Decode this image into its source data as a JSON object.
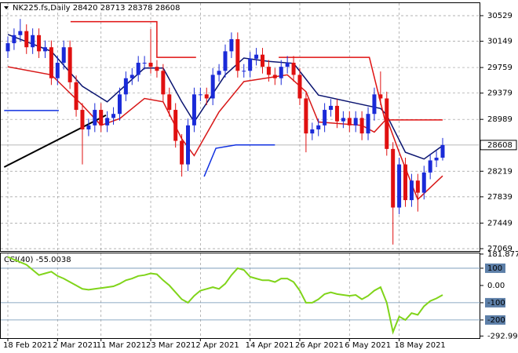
{
  "chart_data": {
    "type": "candlestick",
    "title": "NK225.fs,Daily",
    "categories": [
      "18 Feb 2021",
      null,
      null,
      null,
      null,
      null,
      null,
      null,
      "2 Mar 2021",
      null,
      null,
      null,
      null,
      null,
      null,
      "11 Mar 2021",
      null,
      null,
      null,
      null,
      null,
      null,
      null,
      "23 Mar 2021",
      null,
      null,
      null,
      null,
      null,
      null,
      null,
      "2 Apr 2021",
      null,
      null,
      null,
      null,
      null,
      null,
      null,
      "14 Apr 2021",
      null,
      null,
      null,
      null,
      null,
      null,
      null,
      "26 Apr 2021",
      null,
      null,
      null,
      null,
      null,
      null,
      null,
      "6 May 2021",
      null,
      null,
      null,
      null,
      null,
      null,
      null,
      "18 May 2021",
      null,
      null,
      null,
      null,
      null,
      null,
      null
    ],
    "open": [
      30000,
      30120,
      30240,
      30300,
      30060,
      30240,
      30000,
      30060,
      29600,
      29830,
      30060,
      29540,
      29130,
      28840,
      28900,
      29130,
      28900,
      29010,
      29070,
      29360,
      29600,
      29650,
      29830,
      29830,
      29770,
      29710,
      29360,
      29130,
      28670,
      28320,
      28900,
      29360,
      29360,
      29300,
      29650,
      29710,
      30000,
      30180,
      29710,
      29710,
      29890,
      29950,
      29770,
      29650,
      29600,
      29770,
      29830,
      29650,
      29300,
      28780,
      28840,
      28900,
      29130,
      29190,
      28960,
      29010,
      28900,
      29010,
      28780,
      29070,
      29360,
      29300,
      28550,
      27680,
      28320,
      27790,
      28080,
      27900,
      28200,
      28380,
      28420
    ],
    "high": [
      30220,
      30340,
      30480,
      30400,
      30340,
      30340,
      30160,
      30160,
      29930,
      30160,
      30160,
      29640,
      29230,
      29000,
      29230,
      29230,
      29110,
      29170,
      29460,
      29700,
      29750,
      29930,
      29930,
      30330,
      29870,
      29810,
      29460,
      29230,
      28770,
      29000,
      29460,
      29460,
      29460,
      29750,
      29810,
      30100,
      30280,
      30280,
      29810,
      29990,
      30050,
      30050,
      29870,
      29750,
      29870,
      29930,
      29930,
      29750,
      29400,
      28940,
      29000,
      29230,
      29290,
      29290,
      29110,
      29110,
      29110,
      29110,
      29170,
      29460,
      29700,
      29400,
      28650,
      28420,
      28420,
      28180,
      28180,
      28300,
      28480,
      28520,
      28713
    ],
    "low": [
      29900,
      30020,
      30140,
      29960,
      29960,
      29900,
      29900,
      29500,
      29500,
      29730,
      29440,
      29030,
      28320,
      28740,
      28800,
      28800,
      28800,
      28910,
      28970,
      29260,
      29500,
      29550,
      29730,
      29670,
      29610,
      29260,
      29030,
      28570,
      28140,
      28220,
      28800,
      29260,
      29200,
      29200,
      29550,
      29610,
      29900,
      29610,
      29610,
      29610,
      29790,
      29670,
      29550,
      29500,
      29500,
      29670,
      29550,
      29200,
      28500,
      28680,
      28740,
      28800,
      29030,
      28860,
      28860,
      28800,
      28800,
      28680,
      28680,
      28970,
      29200,
      28450,
      27130,
      27580,
      27690,
      27690,
      27620,
      27800,
      28100,
      28280,
      28378
    ],
    "close": [
      30120,
      30240,
      30300,
      30060,
      30240,
      30000,
      30060,
      29600,
      29830,
      30060,
      29540,
      29130,
      28840,
      28900,
      29130,
      28900,
      29010,
      29070,
      29360,
      29600,
      29650,
      29830,
      29830,
      29770,
      29710,
      29360,
      29130,
      28670,
      28320,
      28900,
      29360,
      29360,
      29300,
      29650,
      29710,
      30000,
      30180,
      29710,
      29710,
      29890,
      29950,
      29770,
      29650,
      29600,
      29770,
      29830,
      29650,
      29300,
      28780,
      28840,
      28900,
      29130,
      29190,
      28960,
      29010,
      28900,
      29010,
      28780,
      29070,
      29360,
      29300,
      28550,
      27680,
      28320,
      27790,
      28080,
      27900,
      28200,
      28380,
      28420,
      28608
    ],
    "up_color": "#1a2ad8",
    "down_color": "#e01010",
    "ylim": [
      27034,
      30715
    ],
    "yticks": [
      27069,
      27449,
      27839,
      28219,
      28989,
      29379,
      29759,
      30149,
      30529
    ],
    "grid": true,
    "overlays": [
      {
        "color": "#0a1470",
        "x": [
          0,
          7,
          12,
          16,
          22,
          25,
          28,
          30,
          35,
          38,
          42,
          46,
          50,
          55,
          60,
          61,
          64,
          67,
          70
        ],
        "values": [
          30250,
          30000,
          29480,
          29250,
          29750,
          29750,
          29250,
          28950,
          29650,
          29900,
          29850,
          29820,
          29350,
          29250,
          29150,
          29050,
          28500,
          28400,
          28600
        ]
      },
      {
        "color": "#d81818",
        "x": [
          0,
          7,
          12,
          15,
          18,
          22,
          25,
          28,
          30,
          34,
          38,
          45,
          48,
          50,
          57,
          59,
          61,
          63,
          66,
          70
        ],
        "values": [
          29770,
          29650,
          29200,
          28900,
          29000,
          29300,
          29250,
          28700,
          28450,
          29100,
          29550,
          29650,
          29400,
          28950,
          28900,
          28800,
          29000,
          28500,
          27800,
          28150
        ]
      },
      {
        "color": "#e01010",
        "x": [
          10.1,
          24,
          24,
          30.3,
          null,
          43.6,
          58.2,
          60.7,
          70
        ],
        "values": [
          30440,
          30440,
          29910,
          29910,
          null,
          29910,
          29910,
          28980,
          28980
        ]
      },
      {
        "color": "#1030e0",
        "x": [
          -0.6,
          8.2,
          null,
          31.6,
          33.5,
          36.7,
          43
        ],
        "values": [
          29120,
          29120,
          null,
          28140,
          28560,
          28610,
          28610
        ]
      },
      {
        "color": "#000000",
        "x": [
          -0.6,
          15.8
        ],
        "values": [
          28280,
          29050
        ]
      }
    ],
    "indicator": {
      "type": "line",
      "title": "CCI(40) -55.0038",
      "color": "#80d41a",
      "values": [
        165,
        150,
        135,
        120,
        90,
        60,
        70,
        80,
        55,
        40,
        20,
        0,
        -20,
        -25,
        -20,
        -15,
        -10,
        -5,
        10,
        30,
        40,
        55,
        60,
        70,
        65,
        30,
        0,
        -40,
        -80,
        -100,
        -60,
        -30,
        -20,
        -10,
        -20,
        10,
        60,
        100,
        90,
        50,
        40,
        30,
        30,
        20,
        40,
        40,
        20,
        -30,
        -100,
        -100,
        -80,
        -50,
        -40,
        -50,
        -55,
        -60,
        -55,
        -80,
        -60,
        -30,
        -10,
        -100,
        -270,
        -180,
        -200,
        -160,
        -170,
        -120,
        -90,
        -75,
        -55.0038
      ],
      "ylim": [
        -305,
        186
      ],
      "yticks": [
        181.8772,
        100,
        {
          "value": 0,
          "label": "0.00"
        },
        -100,
        -200,
        {
          "value": -292.99,
          "label": "-292.990"
        }
      ],
      "levels": [
        100,
        -100,
        -200
      ]
    }
  }
}
